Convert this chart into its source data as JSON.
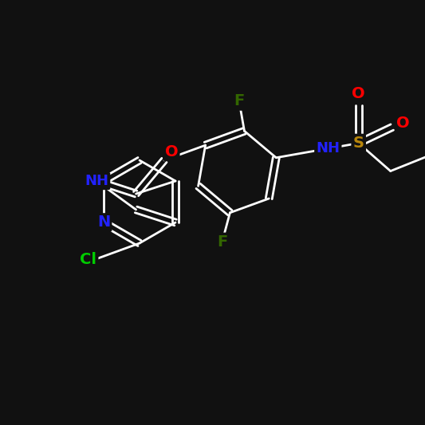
{
  "background_color": "#111111",
  "atom_colors": {
    "Cl": "#00cc00",
    "N": "#2222ff",
    "NH": "#2222ff",
    "O": "#ff0000",
    "F": "#336600",
    "S": "#b8860b",
    "C": "white"
  },
  "figsize": [
    5.33,
    5.33
  ],
  "dpi": 100
}
